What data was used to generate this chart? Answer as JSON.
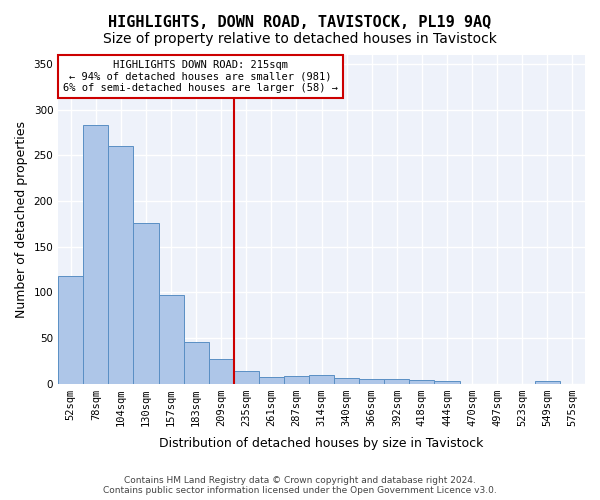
{
  "title": "HIGHLIGHTS, DOWN ROAD, TAVISTOCK, PL19 9AQ",
  "subtitle": "Size of property relative to detached houses in Tavistock",
  "xlabel": "Distribution of detached houses by size in Tavistock",
  "ylabel": "Number of detached properties",
  "categories": [
    "52sqm",
    "78sqm",
    "104sqm",
    "130sqm",
    "157sqm",
    "183sqm",
    "209sqm",
    "235sqm",
    "261sqm",
    "287sqm",
    "314sqm",
    "340sqm",
    "366sqm",
    "392sqm",
    "418sqm",
    "444sqm",
    "470sqm",
    "497sqm",
    "523sqm",
    "549sqm",
    "575sqm"
  ],
  "values": [
    118,
    283,
    260,
    176,
    97,
    45,
    27,
    14,
    7,
    8,
    9,
    6,
    5,
    5,
    4,
    3,
    0,
    0,
    0,
    3,
    0
  ],
  "bar_color": "#aec6e8",
  "bar_edge_color": "#5a8fc4",
  "vline_color": "#cc0000",
  "vline_x": 6.5,
  "annotation_text": "HIGHLIGHTS DOWN ROAD: 215sqm\n← 94% of detached houses are smaller (981)\n6% of semi-detached houses are larger (58) →",
  "annotation_box_color": "#ffffff",
  "annotation_box_edge": "#cc0000",
  "footer_text": "Contains HM Land Registry data © Crown copyright and database right 2024.\nContains public sector information licensed under the Open Government Licence v3.0.",
  "ylim": [
    0,
    360
  ],
  "yticks": [
    0,
    50,
    100,
    150,
    200,
    250,
    300,
    350
  ],
  "background_color": "#eef2fa",
  "grid_color": "#ffffff",
  "title_fontsize": 11,
  "subtitle_fontsize": 10,
  "tick_fontsize": 7.5,
  "ylabel_fontsize": 9,
  "xlabel_fontsize": 9,
  "annotation_fontsize": 7.5,
  "footer_fontsize": 6.5
}
